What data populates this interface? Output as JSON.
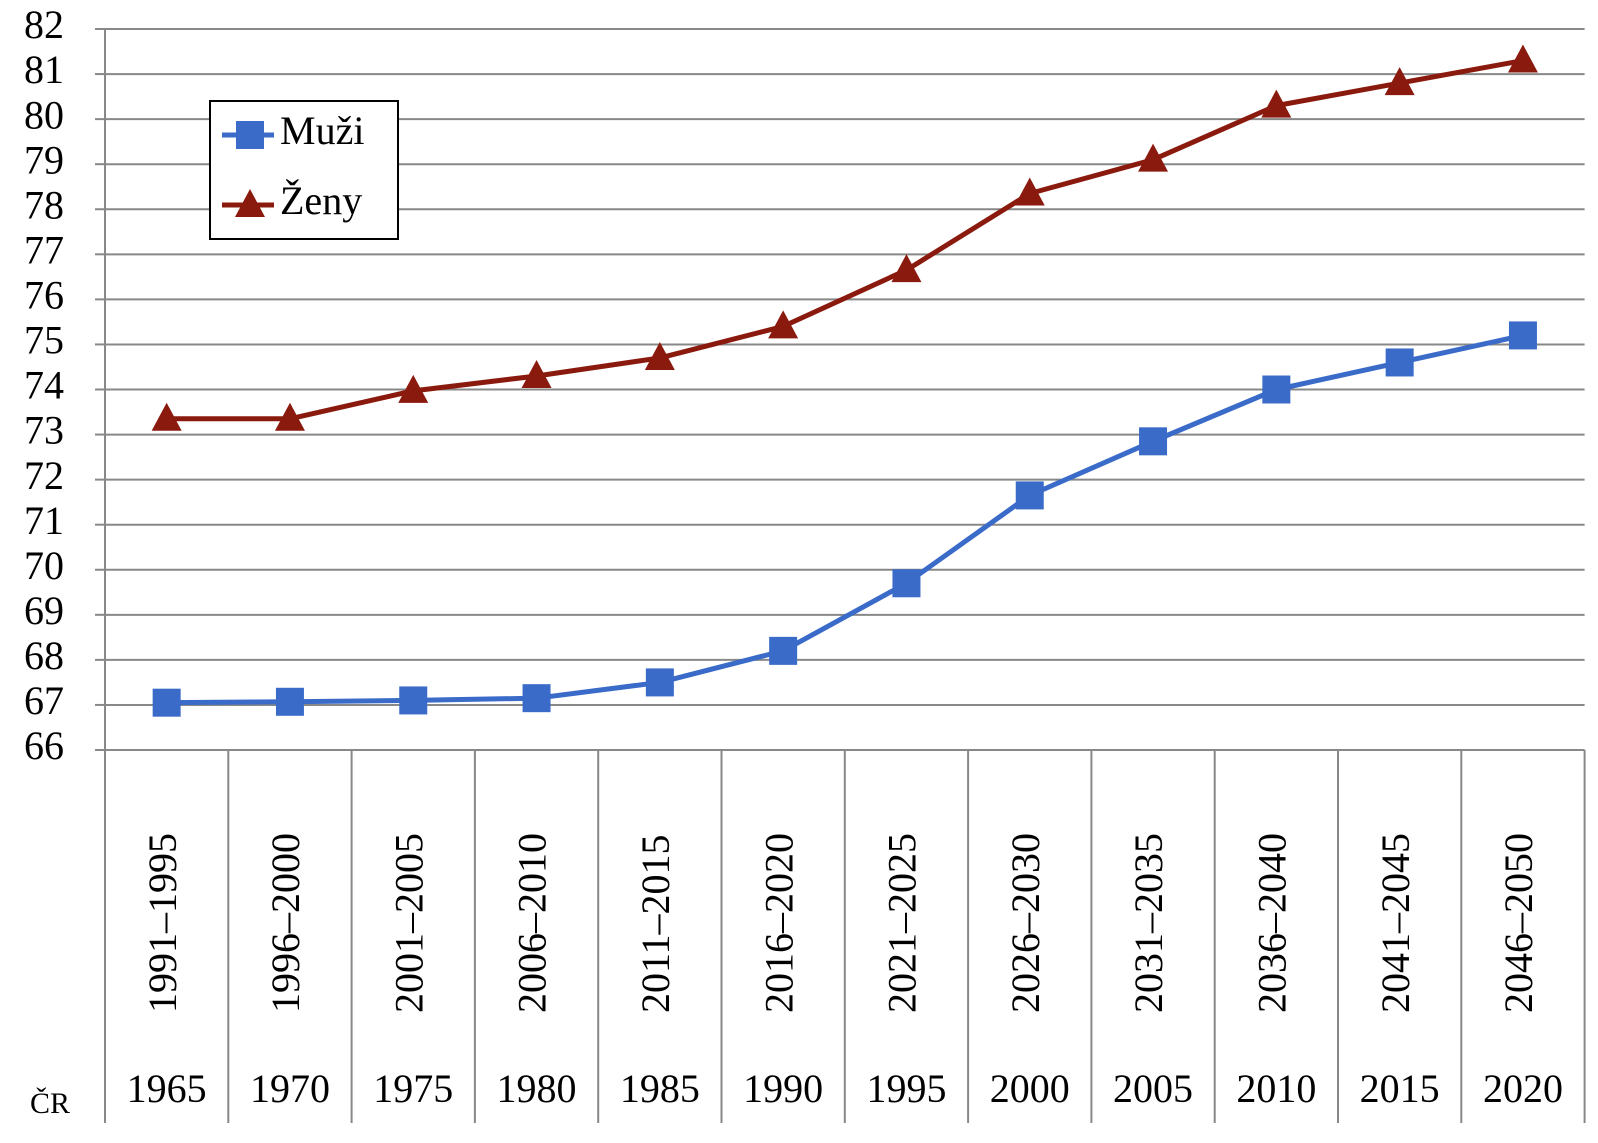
{
  "chart_data": {
    "type": "line",
    "categories": [
      "1991–1995",
      "1996–2000",
      "2001–2005",
      "2006–2010",
      "2011–2015",
      "2016–2020",
      "2021–2025",
      "2026–2030",
      "2031–2035",
      "2036–2040",
      "2041–2045",
      "2046–2050"
    ],
    "categories_2": [
      "1965",
      "1970",
      "1975",
      "1980",
      "1985",
      "1990",
      "1995",
      "2000",
      "2005",
      "2010",
      "2015",
      "2020"
    ],
    "categories_2_label": "ČR",
    "series": [
      {
        "name": "Muži",
        "color": "#3a6bc9",
        "marker": "square",
        "values": [
          67.05,
          67.07,
          67.1,
          67.15,
          67.5,
          68.2,
          69.7,
          71.65,
          72.85,
          74.0,
          74.6,
          75.2
        ]
      },
      {
        "name": "Ženy",
        "color": "#8b1a0e",
        "marker": "triangle",
        "values": [
          73.35,
          73.35,
          73.97,
          74.3,
          74.7,
          75.4,
          76.65,
          78.35,
          79.1,
          80.3,
          80.8,
          81.3
        ]
      }
    ],
    "ylim": [
      66,
      82
    ],
    "yticks": [
      66,
      67,
      68,
      69,
      70,
      71,
      72,
      73,
      74,
      75,
      76,
      77,
      78,
      79,
      80,
      81,
      82
    ],
    "grid": true,
    "legend": "upper left"
  }
}
